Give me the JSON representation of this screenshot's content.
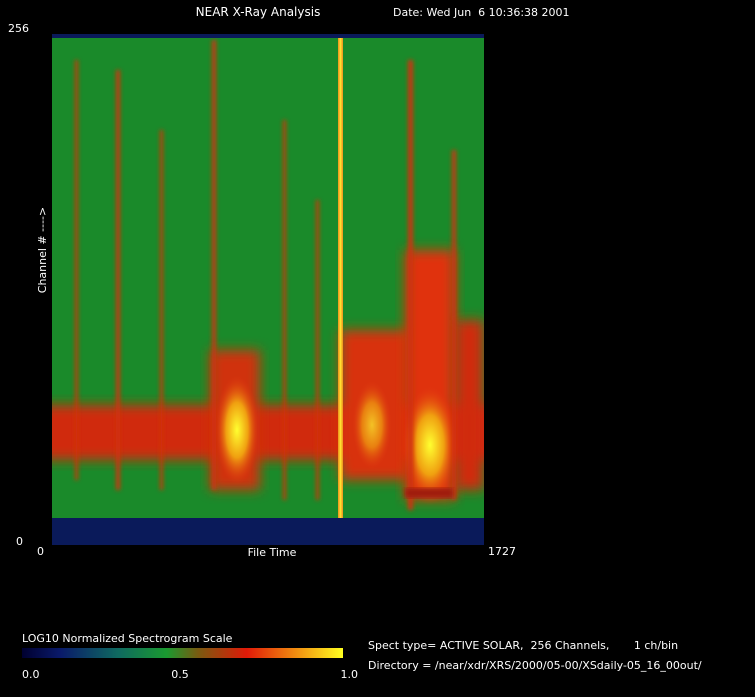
{
  "header": {
    "title": "NEAR X-Ray Analysis",
    "date": "Date: Wed Jun  6 10:36:38 2001"
  },
  "plot": {
    "y_axis_top": "256",
    "y_axis_bottom": "0",
    "y_axis_label": "Channel # ---->",
    "x_axis_left": "0",
    "x_axis_label": "File Time",
    "x_axis_right": "1727"
  },
  "colorbar": {
    "title": "LOG10 Normalized Spectrogram Scale",
    "labels": [
      "0.0",
      "0.5",
      "1.0"
    ]
  },
  "info": {
    "spect": "Spect type= ACTIVE SOLAR,  256 Channels,       1 ch/bin",
    "directory": "Directory = /near/xdr/XRS/2000/05-00/XSdaily-05_16_00out/"
  }
}
